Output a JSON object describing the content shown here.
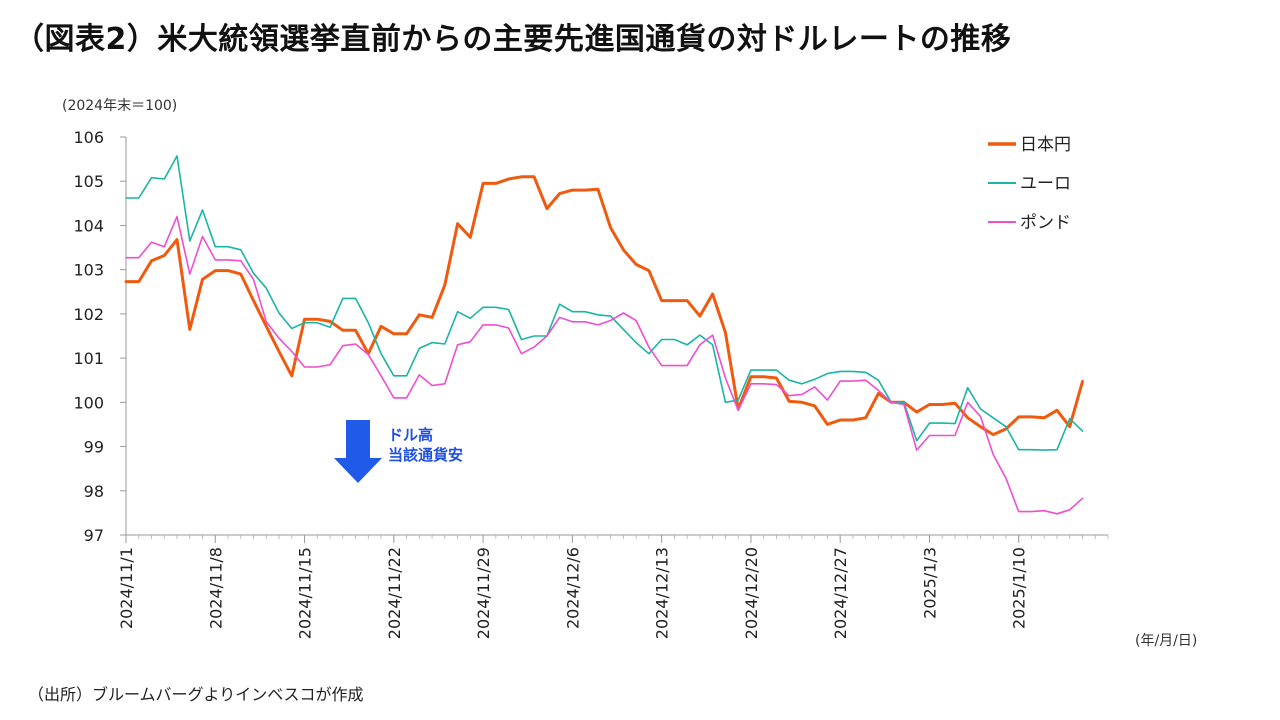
{
  "page": {
    "title": "（図表2）米大統領選挙直前からの主要先進国通貨の対ドルレートの推移",
    "unit": "(2024年末＝100)",
    "x_unit": "(年/月/日)",
    "source": "（出所）ブルームバーグよりインベスコが作成"
  },
  "chart_data": {
    "type": "line",
    "title": "（図表2）米大統領選挙直前からの主要先進国通貨の対ドルレートの推移",
    "ylabel": "(2024年末＝100)",
    "xlabel": "(年/月/日)",
    "ylim": [
      97,
      106
    ],
    "yticks": [
      97,
      98,
      99,
      100,
      101,
      102,
      103,
      104,
      105,
      106
    ],
    "x_start": "2024/11/1",
    "x_end": "2025/1/17",
    "xticks": [
      "2024/11/1",
      "2024/11/8",
      "2024/11/15",
      "2024/11/22",
      "2024/11/29",
      "2024/12/6",
      "2024/12/13",
      "2024/12/20",
      "2024/12/27",
      "2025/1/3",
      "2025/1/10"
    ],
    "grid": false,
    "legend_position": "top-right",
    "series": [
      {
        "name": "日本円",
        "color": "#f05a0e",
        "width": 3,
        "points": [
          [
            "2024/11/1",
            102.73
          ],
          [
            "2024/11/2",
            102.73
          ],
          [
            "2024/11/3",
            103.2
          ],
          [
            "2024/11/4",
            103.32
          ],
          [
            "2024/11/5",
            103.68
          ],
          [
            "2024/11/6",
            101.65
          ],
          [
            "2024/11/7",
            102.78
          ],
          [
            "2024/11/8",
            102.98
          ],
          [
            "2024/11/9",
            102.98
          ],
          [
            "2024/11/10",
            102.9
          ],
          [
            "2024/11/11",
            102.3
          ],
          [
            "2024/11/12",
            101.72
          ],
          [
            "2024/11/13",
            101.15
          ],
          [
            "2024/11/14",
            100.6
          ],
          [
            "2024/11/15",
            101.88
          ],
          [
            "2024/11/16",
            101.88
          ],
          [
            "2024/11/17",
            101.83
          ],
          [
            "2024/11/18",
            101.63
          ],
          [
            "2024/11/19",
            101.63
          ],
          [
            "2024/11/20",
            101.1
          ],
          [
            "2024/11/21",
            101.72
          ],
          [
            "2024/11/22",
            101.55
          ],
          [
            "2024/11/23",
            101.55
          ],
          [
            "2024/11/24",
            101.98
          ],
          [
            "2024/11/25",
            101.92
          ],
          [
            "2024/11/26",
            102.65
          ],
          [
            "2024/11/27",
            104.04
          ],
          [
            "2024/11/28",
            103.73
          ],
          [
            "2024/11/29",
            104.95
          ],
          [
            "2024/11/30",
            104.95
          ],
          [
            "2024/12/1",
            105.05
          ],
          [
            "2024/12/2",
            105.1
          ],
          [
            "2024/12/3",
            105.1
          ],
          [
            "2024/12/4",
            104.38
          ],
          [
            "2024/12/5",
            104.72
          ],
          [
            "2024/12/6",
            104.8
          ],
          [
            "2024/12/7",
            104.8
          ],
          [
            "2024/12/8",
            104.82
          ],
          [
            "2024/12/9",
            103.95
          ],
          [
            "2024/12/10",
            103.45
          ],
          [
            "2024/12/11",
            103.12
          ],
          [
            "2024/12/12",
            102.98
          ],
          [
            "2024/12/13",
            102.3
          ],
          [
            "2024/12/14",
            102.3
          ],
          [
            "2024/12/15",
            102.3
          ],
          [
            "2024/12/16",
            101.95
          ],
          [
            "2024/12/17",
            102.45
          ],
          [
            "2024/12/18",
            101.58
          ],
          [
            "2024/12/19",
            99.85
          ],
          [
            "2024/12/20",
            100.58
          ],
          [
            "2024/12/21",
            100.58
          ],
          [
            "2024/12/22",
            100.55
          ],
          [
            "2024/12/23",
            100.02
          ],
          [
            "2024/12/24",
            100.0
          ],
          [
            "2024/12/25",
            99.92
          ],
          [
            "2024/12/26",
            99.5
          ],
          [
            "2024/12/27",
            99.6
          ],
          [
            "2024/12/28",
            99.6
          ],
          [
            "2024/12/29",
            99.65
          ],
          [
            "2024/12/30",
            100.2
          ],
          [
            "2024/12/31",
            100.0
          ],
          [
            "2025/1/1",
            100.0
          ],
          [
            "2025/1/2",
            99.78
          ],
          [
            "2025/1/3",
            99.95
          ],
          [
            "2025/1/4",
            99.95
          ],
          [
            "2025/1/5",
            99.98
          ],
          [
            "2025/1/6",
            99.65
          ],
          [
            "2025/1/7",
            99.45
          ],
          [
            "2025/1/8",
            99.27
          ],
          [
            "2025/1/9",
            99.4
          ],
          [
            "2025/1/10",
            99.67
          ],
          [
            "2025/1/11",
            99.67
          ],
          [
            "2025/1/12",
            99.65
          ],
          [
            "2025/1/13",
            99.82
          ],
          [
            "2025/1/14",
            99.45
          ],
          [
            "2025/1/15",
            100.47
          ]
        ]
      },
      {
        "name": "ユーロ",
        "color": "#19b5a5",
        "width": 1.6,
        "points": [
          [
            "2024/11/1",
            104.62
          ],
          [
            "2024/11/2",
            104.62
          ],
          [
            "2024/11/3",
            105.08
          ],
          [
            "2024/11/4",
            105.05
          ],
          [
            "2024/11/5",
            105.57
          ],
          [
            "2024/11/6",
            103.65
          ],
          [
            "2024/11/7",
            104.35
          ],
          [
            "2024/11/8",
            103.52
          ],
          [
            "2024/11/9",
            103.52
          ],
          [
            "2024/11/10",
            103.45
          ],
          [
            "2024/11/11",
            102.92
          ],
          [
            "2024/11/12",
            102.58
          ],
          [
            "2024/11/13",
            102.02
          ],
          [
            "2024/11/14",
            101.67
          ],
          [
            "2024/11/15",
            101.8
          ],
          [
            "2024/11/16",
            101.8
          ],
          [
            "2024/11/17",
            101.7
          ],
          [
            "2024/11/18",
            102.35
          ],
          [
            "2024/11/19",
            102.35
          ],
          [
            "2024/11/20",
            101.8
          ],
          [
            "2024/11/21",
            101.1
          ],
          [
            "2024/11/22",
            100.6
          ],
          [
            "2024/11/23",
            100.6
          ],
          [
            "2024/11/24",
            101.22
          ],
          [
            "2024/11/25",
            101.35
          ],
          [
            "2024/11/26",
            101.32
          ],
          [
            "2024/11/27",
            102.05
          ],
          [
            "2024/11/28",
            101.9
          ],
          [
            "2024/11/29",
            102.15
          ],
          [
            "2024/11/30",
            102.15
          ],
          [
            "2024/12/1",
            102.1
          ],
          [
            "2024/12/2",
            101.42
          ],
          [
            "2024/12/3",
            101.5
          ],
          [
            "2024/12/4",
            101.5
          ],
          [
            "2024/12/5",
            102.22
          ],
          [
            "2024/12/6",
            102.05
          ],
          [
            "2024/12/7",
            102.05
          ],
          [
            "2024/12/8",
            101.98
          ],
          [
            "2024/12/9",
            101.95
          ],
          [
            "2024/12/10",
            101.65
          ],
          [
            "2024/12/11",
            101.35
          ],
          [
            "2024/12/12",
            101.1
          ],
          [
            "2024/12/13",
            101.42
          ],
          [
            "2024/12/14",
            101.42
          ],
          [
            "2024/12/15",
            101.3
          ],
          [
            "2024/12/16",
            101.52
          ],
          [
            "2024/12/17",
            101.3
          ],
          [
            "2024/12/18",
            100.0
          ],
          [
            "2024/12/19",
            100.05
          ],
          [
            "2024/12/20",
            100.73
          ],
          [
            "2024/12/21",
            100.73
          ],
          [
            "2024/12/22",
            100.73
          ],
          [
            "2024/12/23",
            100.5
          ],
          [
            "2024/12/24",
            100.42
          ],
          [
            "2024/12/25",
            100.52
          ],
          [
            "2024/12/26",
            100.65
          ],
          [
            "2024/12/27",
            100.7
          ],
          [
            "2024/12/28",
            100.7
          ],
          [
            "2024/12/29",
            100.68
          ],
          [
            "2024/12/30",
            100.5
          ],
          [
            "2024/12/31",
            100.0
          ],
          [
            "2025/1/1",
            100.0
          ],
          [
            "2025/1/2",
            99.13
          ],
          [
            "2025/1/3",
            99.53
          ],
          [
            "2025/1/4",
            99.53
          ],
          [
            "2025/1/5",
            99.52
          ],
          [
            "2025/1/6",
            100.33
          ],
          [
            "2025/1/7",
            99.85
          ],
          [
            "2025/1/8",
            99.65
          ],
          [
            "2025/1/9",
            99.45
          ],
          [
            "2025/1/10",
            98.93
          ],
          [
            "2025/1/11",
            98.93
          ],
          [
            "2025/1/12",
            98.92
          ],
          [
            "2025/1/13",
            98.93
          ],
          [
            "2025/1/14",
            99.63
          ],
          [
            "2025/1/15",
            99.35
          ]
        ]
      },
      {
        "name": "ポンド",
        "color": "#ee4fd0",
        "width": 1.6,
        "points": [
          [
            "2024/11/1",
            103.27
          ],
          [
            "2024/11/2",
            103.27
          ],
          [
            "2024/11/3",
            103.62
          ],
          [
            "2024/11/4",
            103.52
          ],
          [
            "2024/11/5",
            104.2
          ],
          [
            "2024/11/6",
            102.9
          ],
          [
            "2024/11/7",
            103.75
          ],
          [
            "2024/11/8",
            103.22
          ],
          [
            "2024/11/9",
            103.22
          ],
          [
            "2024/11/10",
            103.2
          ],
          [
            "2024/11/11",
            102.78
          ],
          [
            "2024/11/12",
            101.82
          ],
          [
            "2024/11/13",
            101.45
          ],
          [
            "2024/11/14",
            101.15
          ],
          [
            "2024/11/15",
            100.8
          ],
          [
            "2024/11/16",
            100.8
          ],
          [
            "2024/11/17",
            100.85
          ],
          [
            "2024/11/18",
            101.28
          ],
          [
            "2024/11/19",
            101.32
          ],
          [
            "2024/11/20",
            101.08
          ],
          [
            "2024/11/21",
            100.6
          ],
          [
            "2024/11/22",
            100.1
          ],
          [
            "2024/11/23",
            100.1
          ],
          [
            "2024/11/24",
            100.62
          ],
          [
            "2024/11/25",
            100.38
          ],
          [
            "2024/11/26",
            100.42
          ],
          [
            "2024/11/27",
            101.3
          ],
          [
            "2024/11/28",
            101.37
          ],
          [
            "2024/11/29",
            101.75
          ],
          [
            "2024/11/30",
            101.75
          ],
          [
            "2024/12/1",
            101.68
          ],
          [
            "2024/12/2",
            101.1
          ],
          [
            "2024/12/3",
            101.25
          ],
          [
            "2024/12/4",
            101.5
          ],
          [
            "2024/12/5",
            101.92
          ],
          [
            "2024/12/6",
            101.82
          ],
          [
            "2024/12/7",
            101.82
          ],
          [
            "2024/12/8",
            101.75
          ],
          [
            "2024/12/9",
            101.85
          ],
          [
            "2024/12/10",
            102.02
          ],
          [
            "2024/12/11",
            101.85
          ],
          [
            "2024/12/12",
            101.25
          ],
          [
            "2024/12/13",
            100.83
          ],
          [
            "2024/12/14",
            100.83
          ],
          [
            "2024/12/15",
            100.83
          ],
          [
            "2024/12/16",
            101.3
          ],
          [
            "2024/12/17",
            101.52
          ],
          [
            "2024/12/18",
            100.55
          ],
          [
            "2024/12/19",
            99.82
          ],
          [
            "2024/12/20",
            100.42
          ],
          [
            "2024/12/21",
            100.42
          ],
          [
            "2024/12/22",
            100.4
          ],
          [
            "2024/12/23",
            100.15
          ],
          [
            "2024/12/24",
            100.18
          ],
          [
            "2024/12/25",
            100.35
          ],
          [
            "2024/12/26",
            100.05
          ],
          [
            "2024/12/27",
            100.48
          ],
          [
            "2024/12/28",
            100.48
          ],
          [
            "2024/12/29",
            100.5
          ],
          [
            "2024/12/30",
            100.27
          ],
          [
            "2024/12/31",
            100.0
          ],
          [
            "2025/1/1",
            99.95
          ],
          [
            "2025/1/2",
            98.92
          ],
          [
            "2025/1/3",
            99.25
          ],
          [
            "2025/1/4",
            99.25
          ],
          [
            "2025/1/5",
            99.25
          ],
          [
            "2025/1/6",
            100.0
          ],
          [
            "2025/1/7",
            99.68
          ],
          [
            "2025/1/8",
            98.82
          ],
          [
            "2025/1/9",
            98.28
          ],
          [
            "2025/1/10",
            97.53
          ],
          [
            "2025/1/11",
            97.53
          ],
          [
            "2025/1/12",
            97.55
          ],
          [
            "2025/1/13",
            97.48
          ],
          [
            "2025/1/14",
            97.57
          ],
          [
            "2025/1/15",
            97.83
          ]
        ]
      }
    ],
    "annotation": {
      "lines": [
        "ドル高",
        "当該通貨安"
      ],
      "arrow_direction": "down",
      "color": "#1f4fe0"
    }
  }
}
